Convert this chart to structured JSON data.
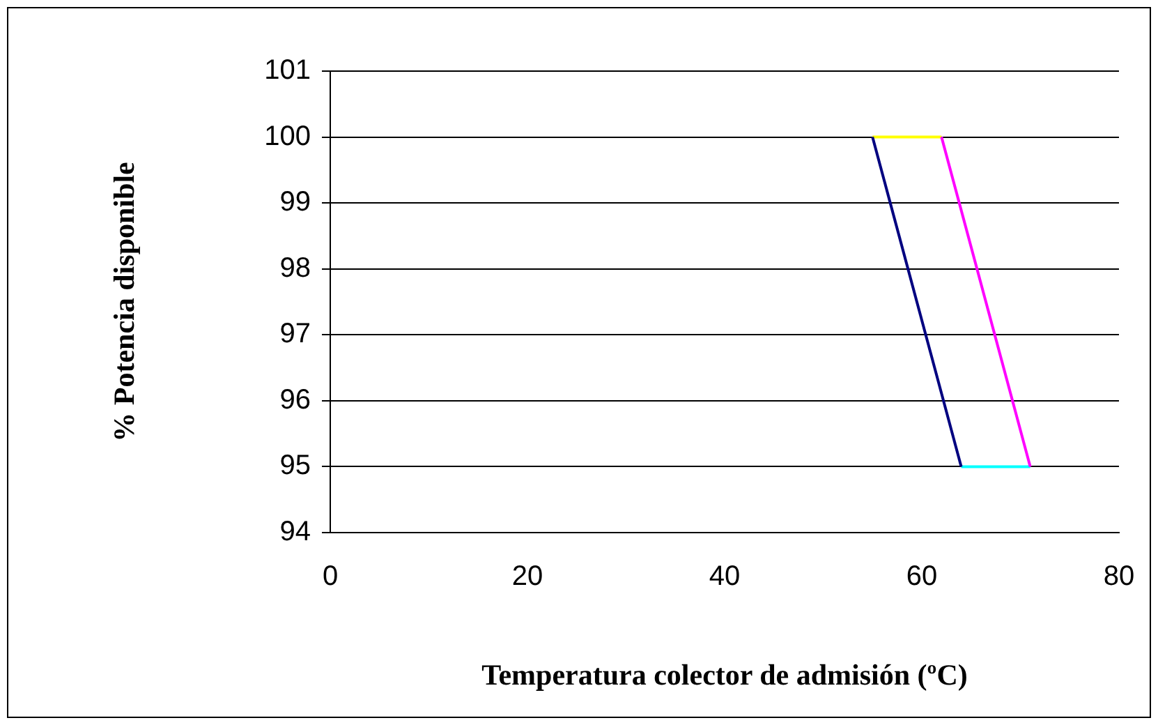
{
  "chart_data": {
    "type": "line",
    "xlabel": "Temperatura colector de admisión (ºC)",
    "ylabel": "% Potencia disponible",
    "xlim": [
      0,
      80
    ],
    "xticks": [
      0,
      20,
      40,
      60,
      80
    ],
    "ylim": [
      94,
      101
    ],
    "yticks": [
      94,
      95,
      96,
      97,
      98,
      99,
      100,
      101
    ],
    "grid": "y",
    "legend": false,
    "marker": "none",
    "line_style": "solid",
    "series": [
      {
        "color": "#000080",
        "x": [
          55,
          64
        ],
        "values": [
          100,
          95
        ]
      },
      {
        "color": "#ff00ff",
        "x": [
          62,
          71
        ],
        "values": [
          100,
          95
        ]
      },
      {
        "color": "#ffff00",
        "x": [
          55,
          62
        ],
        "values": [
          100,
          100
        ]
      },
      {
        "color": "#00ffff",
        "x": [
          64,
          71
        ],
        "values": [
          95,
          95
        ]
      }
    ]
  }
}
